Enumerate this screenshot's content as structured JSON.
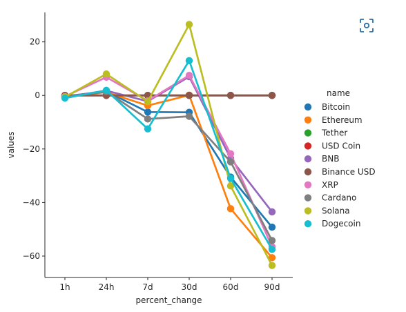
{
  "chart_data": {
    "type": "line",
    "xlabel": "percent_change",
    "ylabel": "values",
    "categories": [
      "1h",
      "24h",
      "7d",
      "30d",
      "60d",
      "90d"
    ],
    "ylim": [
      -68,
      31
    ],
    "yticks": [
      20,
      0,
      -20,
      -40,
      -60
    ],
    "ytick_labels": [
      "20",
      "0",
      "−20",
      "−40",
      "−60"
    ],
    "grid": false,
    "legend": {
      "title": "name",
      "placement": "right"
    },
    "series": [
      {
        "name": "Bitcoin",
        "color": "#1f77b4",
        "values": [
          -0.3,
          1.5,
          -6.2,
          -6.3,
          -30.5,
          -49.2
        ]
      },
      {
        "name": "Ethereum",
        "color": "#ff7f0e",
        "values": [
          -0.5,
          1.2,
          -3.8,
          0.1,
          -42.3,
          -60.6
        ]
      },
      {
        "name": "Tether",
        "color": "#2ca02c",
        "values": [
          0.0,
          0.0,
          0.0,
          0.0,
          0.0,
          0.0
        ]
      },
      {
        "name": "USD Coin",
        "color": "#d62728",
        "values": [
          0.0,
          0.0,
          0.0,
          0.0,
          0.0,
          0.0
        ]
      },
      {
        "name": "BNB",
        "color": "#9467bd",
        "values": [
          -0.6,
          1.8,
          -2.2,
          7.0,
          -23.5,
          -43.5
        ]
      },
      {
        "name": "Binance USD",
        "color": "#8c564b",
        "values": [
          0.0,
          0.0,
          0.0,
          0.0,
          0.0,
          0.0
        ]
      },
      {
        "name": "XRP",
        "color": "#e377c2",
        "values": [
          -0.4,
          6.8,
          -2.0,
          7.5,
          -21.8,
          -56.5
        ]
      },
      {
        "name": "Cardano",
        "color": "#7f7f7f",
        "values": [
          -0.6,
          1.4,
          -8.8,
          -7.8,
          -24.8,
          -54.2
        ]
      },
      {
        "name": "Solana",
        "color": "#bcbd22",
        "values": [
          -0.6,
          8.0,
          -2.3,
          26.5,
          -33.8,
          -63.5
        ]
      },
      {
        "name": "Dogecoin",
        "color": "#17becf",
        "values": [
          -1.0,
          1.9,
          -12.5,
          13.0,
          -31.0,
          -57.5
        ]
      }
    ]
  },
  "ui": {
    "focus_icon": "focus-mode-icon"
  }
}
